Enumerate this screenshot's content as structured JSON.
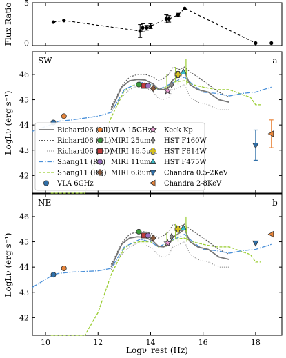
{
  "figure": {
    "xlabel": "Logν_rest (Hz)",
    "ratio_ylabel": "Flux Ratio",
    "sed_ylabel": "LogLν (erg s⁻¹)"
  },
  "legend": [
    {
      "label": "Richard06 (All)",
      "kind": "line",
      "color": "#777777",
      "dash": "",
      "width": 1.8
    },
    {
      "label": "Richard06 (OL)",
      "kind": "line",
      "color": "#555555",
      "dash": "2,2",
      "width": 1.1
    },
    {
      "label": "Richard06 (OD)",
      "kind": "line",
      "color": "#888888",
      "dash": "1,2",
      "width": 1.1
    },
    {
      "label": "Shang11 (RL)",
      "kind": "line",
      "color": "#4a90d9",
      "dash": "7,2,1.5,2",
      "width": 1.3
    },
    {
      "label": "Shang11 (RQ)",
      "kind": "line",
      "color": "#9acd32",
      "dash": "4,2",
      "width": 1.3
    },
    {
      "label": "VLA 6GHz",
      "kind": "marker",
      "marker": "circle",
      "color": "#2f6fa8"
    },
    {
      "label": "VLA 15GHz",
      "kind": "marker",
      "marker": "circle",
      "color": "#e8853b"
    },
    {
      "label": "MIRI 25um",
      "kind": "marker",
      "marker": "circle",
      "color": "#3b9a3b"
    },
    {
      "label": "MIRI 16.5um",
      "kind": "marker",
      "marker": "square",
      "color": "#c0393b"
    },
    {
      "label": "MIRI 11um",
      "kind": "marker",
      "marker": "circle",
      "color": "#9b6fc0"
    },
    {
      "label": "MIRI 6.8um",
      "kind": "marker",
      "marker": "diamond",
      "color": "#8b5a3c"
    },
    {
      "label": "Keck Kp",
      "kind": "marker",
      "marker": "star",
      "color": "#e89ad0"
    },
    {
      "label": "HST F160W",
      "kind": "marker",
      "marker": "thindiamond",
      "color": "#888888"
    },
    {
      "label": "HST F814W",
      "kind": "marker",
      "marker": "plus",
      "color": "#d4c020"
    },
    {
      "label": "HST F475W",
      "kind": "marker",
      "marker": "triangle-up",
      "color": "#3bbcc8"
    },
    {
      "label": "Chandra 0.5-2KeV",
      "kind": "marker",
      "marker": "triangle-down",
      "color": "#2f6fa8"
    },
    {
      "label": "Chandra 2-8KeV",
      "kind": "marker",
      "marker": "triangle-left",
      "color": "#e8853b"
    }
  ],
  "chart_data": [
    {
      "type": "line",
      "panel": "ratio",
      "ylabel": "Flux Ratio",
      "xlim": [
        9.5,
        19.0
      ],
      "ylim": [
        -0.3,
        5.0
      ],
      "xticks": [
        10,
        12,
        14,
        16,
        18
      ],
      "yticks": [
        0,
        5
      ],
      "series": [
        {
          "style": "dashed-black-with-errorbars",
          "x": [
            10.3,
            10.7,
            13.6,
            13.7,
            13.85,
            14.0,
            14.6,
            14.7,
            15.05,
            15.3,
            18.0,
            18.6
          ],
          "y": [
            2.6,
            2.8,
            1.5,
            1.9,
            1.9,
            2.1,
            3.0,
            3.0,
            3.5,
            4.3,
            0.0,
            0.0
          ],
          "yerr": [
            0,
            0,
            0.8,
            0.5,
            0.3,
            0.3,
            0.5,
            0.4,
            0.2,
            0,
            0,
            0
          ]
        }
      ]
    },
    {
      "type": "line",
      "panel": "SW",
      "panel_label": "SW",
      "panel_tag": "a",
      "xlim": [
        9.5,
        19.0
      ],
      "ylim": [
        41.3,
        46.9
      ],
      "xticks": [
        10,
        12,
        14,
        16,
        18
      ],
      "yticks": [
        42,
        43,
        44,
        45,
        46
      ],
      "models": {
        "richard_all": {
          "x": [
            12.5,
            12.9,
            13.2,
            13.5,
            13.8,
            14.1,
            14.3,
            14.5,
            14.7,
            14.85,
            15.1,
            15.3,
            15.5,
            15.8,
            16.2,
            16.6,
            17.0
          ],
          "y": [
            44.6,
            45.5,
            45.75,
            45.8,
            45.78,
            45.62,
            45.42,
            45.4,
            45.5,
            45.78,
            45.95,
            46.1,
            45.6,
            45.4,
            45.3,
            45.0,
            44.9
          ]
        },
        "richard_ol": {
          "x": [
            12.5,
            12.9,
            13.2,
            13.5,
            13.8,
            14.1,
            14.3,
            14.5,
            14.7,
            14.85,
            15.1,
            15.3,
            15.5,
            15.8,
            16.2,
            16.6,
            17.0
          ],
          "y": [
            44.7,
            45.55,
            45.9,
            46.0,
            46.0,
            45.9,
            45.75,
            45.85,
            46.0,
            46.3,
            46.2,
            46.3,
            46.1,
            45.9,
            45.6,
            45.3,
            45.1
          ]
        },
        "richard_od": {
          "x": [
            12.5,
            12.9,
            13.2,
            13.5,
            13.8,
            14.1,
            14.3,
            14.5,
            14.7,
            14.85,
            15.1,
            15.3,
            15.5,
            15.8,
            16.2,
            16.6,
            17.0
          ],
          "y": [
            44.5,
            45.1,
            45.4,
            45.55,
            45.5,
            45.3,
            45.05,
            45.0,
            45.1,
            45.4,
            45.5,
            45.6,
            45.1,
            44.9,
            44.8,
            44.6,
            44.6
          ]
        },
        "shang_rl": {
          "x": [
            9.5,
            10.3,
            10.5,
            11.0,
            12.0,
            12.5,
            13.0,
            13.3,
            13.6,
            14.0,
            14.3,
            14.6,
            14.9,
            15.3,
            15.6,
            16.0,
            16.5,
            17.0,
            17.5,
            18.0,
            18.6
          ],
          "y": [
            43.75,
            44.05,
            44.15,
            44.2,
            44.35,
            44.5,
            45.4,
            45.55,
            45.7,
            45.6,
            45.4,
            45.55,
            45.7,
            45.9,
            45.6,
            45.3,
            45.25,
            45.15,
            45.25,
            45.3,
            45.5
          ]
        },
        "shang_rq": {
          "x": [
            10.2,
            11.0,
            11.5,
            12.0,
            12.5,
            13.0,
            13.3,
            13.6,
            14.0,
            14.3,
            14.6,
            14.9,
            15.3,
            15.6,
            16.0,
            16.5,
            17.0,
            17.5,
            17.8,
            18.0,
            18.2
          ],
          "y": [
            37.5,
            39.5,
            41.3,
            42.8,
            44.3,
            45.35,
            45.55,
            45.6,
            45.6,
            45.4,
            45.5,
            45.7,
            45.75,
            45.6,
            45.5,
            45.4,
            45.4,
            45.2,
            45.1,
            44.8,
            44.8
          ]
        },
        "spikes": [
          [
            14.62,
            46.0
          ],
          [
            14.95,
            46.3
          ],
          [
            15.05,
            46.2
          ],
          [
            15.35,
            46.6
          ],
          [
            15.38,
            46.2
          ]
        ]
      },
      "points": [
        {
          "source": "VLA 6GHz",
          "x": 10.3,
          "y": 44.1
        },
        {
          "source": "VLA 15GHz",
          "x": 10.7,
          "y": 44.35
        },
        {
          "source": "MIRI 25um",
          "x": 13.55,
          "y": 45.6
        },
        {
          "source": "MIRI 16.5um",
          "x": 13.75,
          "y": 45.55
        },
        {
          "source": "MIRI 11um",
          "x": 13.9,
          "y": 45.55
        },
        {
          "source": "MIRI 6.8um",
          "x": 14.1,
          "y": 45.45
        },
        {
          "source": "Keck Kp",
          "x": 14.65,
          "y": 45.35
        },
        {
          "source": "HST F160W",
          "x": 14.8,
          "y": 45.6
        },
        {
          "source": "HST F814W",
          "x": 15.05,
          "y": 46.0
        },
        {
          "source": "HST F475W",
          "x": 15.25,
          "y": 46.1
        },
        {
          "source": "Chandra 0.5-2KeV",
          "x": 18.0,
          "y": 43.2,
          "yerr": 0.6
        },
        {
          "source": "Chandra 2-8KeV",
          "x": 18.6,
          "y": 43.65,
          "yerr": 0.55
        }
      ]
    },
    {
      "type": "line",
      "panel": "NE",
      "panel_label": "NE",
      "panel_tag": "b",
      "xlim": [
        9.5,
        19.0
      ],
      "ylim": [
        41.3,
        46.9
      ],
      "xticks": [
        10,
        12,
        14,
        16,
        18
      ],
      "yticks": [
        42,
        43,
        44,
        45,
        46
      ],
      "models": {
        "richard_all": {
          "x": [
            12.5,
            12.9,
            13.2,
            13.5,
            13.8,
            14.1,
            14.3,
            14.5,
            14.7,
            14.85,
            15.1,
            15.3,
            15.5,
            15.8,
            16.2,
            16.6,
            17.0
          ],
          "y": [
            44.0,
            44.9,
            45.15,
            45.2,
            45.18,
            45.02,
            44.82,
            44.8,
            44.9,
            45.18,
            45.35,
            45.5,
            45.0,
            44.8,
            44.7,
            44.4,
            44.3
          ]
        },
        "richard_ol": {
          "x": [
            12.5,
            12.9,
            13.2,
            13.5,
            13.8,
            14.1,
            14.3,
            14.5,
            14.7,
            14.85,
            15.1,
            15.3,
            15.5,
            15.8,
            16.2,
            16.6,
            17.0
          ],
          "y": [
            44.1,
            44.95,
            45.3,
            45.4,
            45.4,
            45.3,
            45.15,
            45.25,
            45.4,
            45.7,
            45.6,
            45.7,
            45.5,
            45.3,
            45.0,
            44.7,
            44.5
          ]
        },
        "richard_od": {
          "x": [
            12.5,
            12.9,
            13.2,
            13.5,
            13.8,
            14.1,
            14.3,
            14.5,
            14.7,
            14.85,
            15.1,
            15.3,
            15.5,
            15.8,
            16.2,
            16.6,
            17.0
          ],
          "y": [
            43.9,
            44.5,
            44.8,
            44.95,
            44.9,
            44.7,
            44.45,
            44.4,
            44.5,
            44.8,
            44.9,
            45.0,
            44.5,
            44.3,
            44.2,
            44.0,
            44.0
          ]
        },
        "shang_rl": {
          "x": [
            9.5,
            10.3,
            10.5,
            11.0,
            12.0,
            12.5,
            13.0,
            13.3,
            13.6,
            14.0,
            14.3,
            14.6,
            14.9,
            15.3,
            15.6,
            16.0,
            16.5,
            17.0,
            17.5,
            18.0,
            18.6
          ],
          "y": [
            43.2,
            43.7,
            43.75,
            43.8,
            43.85,
            43.95,
            44.8,
            44.95,
            45.1,
            45.0,
            44.8,
            44.95,
            45.1,
            45.3,
            45.0,
            44.7,
            44.65,
            44.55,
            44.65,
            44.7,
            44.9
          ]
        },
        "shang_rq": {
          "x": [
            10.2,
            11.0,
            11.5,
            12.0,
            12.5,
            13.0,
            13.3,
            13.6,
            14.0,
            14.3,
            14.6,
            14.9,
            15.3,
            15.6,
            16.0,
            16.5,
            17.0,
            17.5,
            17.8,
            18.0,
            18.2
          ],
          "y": [
            36.9,
            38.9,
            40.7,
            42.2,
            43.7,
            44.75,
            44.95,
            45.0,
            45.0,
            44.8,
            44.9,
            45.1,
            45.15,
            45.0,
            44.9,
            44.8,
            44.8,
            44.6,
            44.5,
            44.2,
            44.2
          ]
        },
        "spikes": [
          [
            14.62,
            45.4
          ],
          [
            14.95,
            45.7
          ],
          [
            15.05,
            45.6
          ],
          [
            15.35,
            46.0
          ],
          [
            15.38,
            45.6
          ]
        ]
      },
      "points": [
        {
          "source": "VLA 6GHz",
          "x": 10.3,
          "y": 43.7
        },
        {
          "source": "VLA 15GHz",
          "x": 10.7,
          "y": 43.95
        },
        {
          "source": "MIRI 25um",
          "x": 13.55,
          "y": 45.4
        },
        {
          "source": "MIRI 16.5um",
          "x": 13.75,
          "y": 45.25
        },
        {
          "source": "MIRI 11um",
          "x": 13.9,
          "y": 45.25
        },
        {
          "source": "MIRI 6.8um",
          "x": 14.1,
          "y": 45.15
        },
        {
          "source": "Keck Kp",
          "x": 14.65,
          "y": 44.95
        },
        {
          "source": "HST F160W",
          "x": 14.8,
          "y": 45.2
        },
        {
          "source": "HST F814W",
          "x": 15.05,
          "y": 45.5
        },
        {
          "source": "HST F475W",
          "x": 15.25,
          "y": 45.55
        },
        {
          "source": "Chandra 0.5-2KeV",
          "x": 18.0,
          "y": 44.95
        },
        {
          "source": "Chandra 2-8KeV",
          "x": 18.6,
          "y": 45.3
        }
      ]
    }
  ]
}
